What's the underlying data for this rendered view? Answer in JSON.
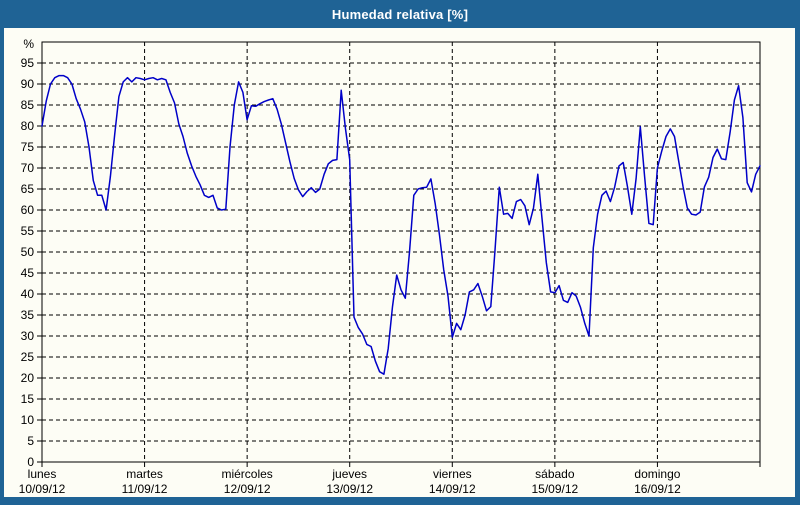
{
  "window": {
    "title": "Humedad relativa [%]"
  },
  "colors": {
    "frame_blue": "#1f6395",
    "chart_background": "#fdfdf5",
    "line_blue": "#0000c8",
    "grid_black": "#000000",
    "title_text": "#ffffff"
  },
  "chart_data": {
    "type": "line",
    "title": "Humedad relativa [%]",
    "ylabel": "%",
    "ylim": [
      0,
      100
    ],
    "yticks": [
      0,
      5,
      10,
      15,
      20,
      25,
      30,
      35,
      40,
      45,
      50,
      55,
      60,
      65,
      70,
      75,
      80,
      85,
      90,
      95
    ],
    "grid": true,
    "legend_position": "none",
    "x_days": [
      {
        "name": "lunes",
        "date": "10/09/12"
      },
      {
        "name": "martes",
        "date": "11/09/12"
      },
      {
        "name": "miércoles",
        "date": "12/09/12"
      },
      {
        "name": "jueves",
        "date": "13/09/12"
      },
      {
        "name": "viernes",
        "date": "14/09/12"
      },
      {
        "name": "sábado",
        "date": "15/09/12"
      },
      {
        "name": "domingo",
        "date": "16/09/12"
      }
    ],
    "points_per_day": 24,
    "values": [
      80,
      86,
      90,
      91.5,
      92,
      92,
      91.5,
      90,
      86.5,
      84,
      81,
      75,
      67,
      63.5,
      63.5,
      60,
      68,
      78,
      87,
      90.5,
      91.5,
      90.5,
      91.5,
      91.3,
      91,
      91.3,
      91.5,
      91,
      91.3,
      91,
      88,
      85.5,
      80.5,
      77.5,
      73.5,
      70.5,
      68,
      66,
      63.5,
      63,
      63.5,
      60.5,
      60,
      60.2,
      75,
      85,
      90.5,
      88,
      81.5,
      84.8,
      84.7,
      85.3,
      85.8,
      86.2,
      86.5,
      84,
      80.5,
      76,
      71.5,
      67.5,
      64.8,
      63.2,
      64.4,
      65.3,
      64.2,
      65,
      68.5,
      71,
      71.8,
      72,
      88.5,
      79.5,
      72,
      34.5,
      32,
      30.5,
      28,
      27.5,
      24,
      21.5,
      20.9,
      27,
      37,
      44.5,
      41,
      39,
      50,
      63.5,
      65,
      65.3,
      65.4,
      67.4,
      61.5,
      54,
      45.8,
      39.5,
      29.7,
      33,
      31.5,
      35,
      40.5,
      41,
      42.5,
      39.5,
      36,
      37,
      50.4,
      65.4,
      59,
      59.2,
      58,
      62,
      62.5,
      61,
      56.5,
      60.5,
      68.5,
      58,
      47.5,
      40.5,
      40.3,
      42,
      38.5,
      38,
      40.3,
      39.5,
      36.8,
      33,
      30,
      51,
      59,
      63.5,
      64.5,
      62,
      65.5,
      70.5,
      71.3,
      65.5,
      59,
      67.5,
      79.8,
      68,
      56.8,
      56.5,
      70,
      74,
      77.5,
      79.3,
      77.5,
      71.5,
      65.5,
      60.5,
      59,
      58.8,
      59.5,
      65.5,
      67.8,
      72.5,
      74.5,
      72.2,
      72,
      78.5,
      86.2,
      89.6,
      82,
      66.5,
      64.3,
      68.5,
      70.5
    ]
  }
}
